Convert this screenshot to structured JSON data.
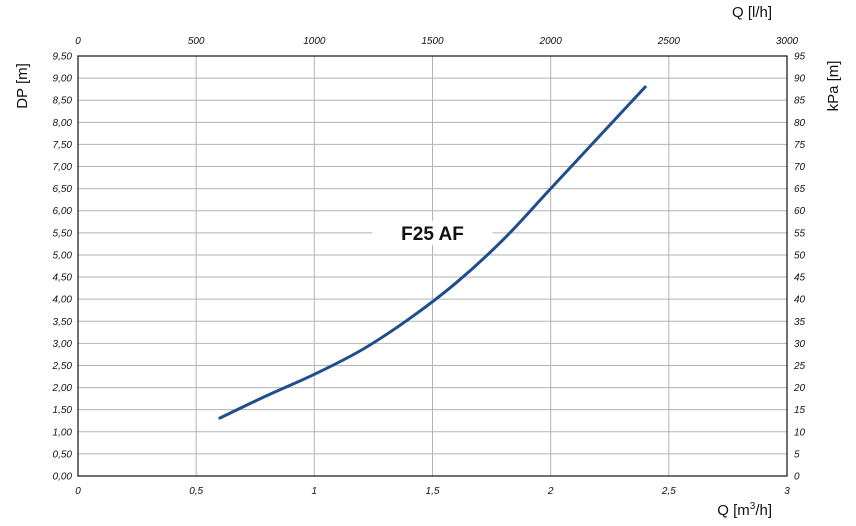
{
  "chart_data": {
    "type": "line",
    "title": "",
    "series": [
      {
        "name": "F25 AF",
        "color": "#1f4e8c",
        "x": [
          0.6,
          0.8,
          1.0,
          1.2,
          1.4,
          1.6,
          1.8,
          2.0,
          2.2,
          2.4
        ],
        "y": [
          1.31,
          1.82,
          2.3,
          2.85,
          3.55,
          4.37,
          5.35,
          6.5,
          7.65,
          8.8
        ]
      }
    ],
    "x_bottom": {
      "label": "Q [m",
      "label_sup": "3",
      "label_tail": "/h]",
      "range": [
        0,
        3
      ],
      "ticks": [
        0,
        0.5,
        1,
        1.5,
        2,
        2.5,
        3
      ],
      "tick_labels": [
        "0",
        "0,5",
        "1",
        "1,5",
        "2",
        "2,5",
        "3"
      ]
    },
    "x_top": {
      "label": "Q [l/h]",
      "range": [
        0,
        3000
      ],
      "ticks": [
        0,
        500,
        1000,
        1500,
        2000,
        2500,
        3000
      ],
      "tick_labels": [
        "0",
        "500",
        "1000",
        "1500",
        "2000",
        "2500",
        "3000"
      ]
    },
    "y_left": {
      "label": "DP [m]",
      "range": [
        0,
        9.5
      ],
      "ticks": [
        0,
        0.5,
        1,
        1.5,
        2,
        2.5,
        3,
        3.5,
        4,
        4.5,
        5,
        5.5,
        6,
        6.5,
        7,
        7.5,
        8,
        8.5,
        9,
        9.5
      ],
      "tick_labels": [
        "0,00",
        "0,50",
        "1,00",
        "1,50",
        "2,00",
        "2,50",
        "3,00",
        "3,50",
        "4,00",
        "4,50",
        "5,00",
        "5,50",
        "6,00",
        "6,50",
        "7,00",
        "7,50",
        "8,00",
        "8,50",
        "9,00",
        "9,50"
      ]
    },
    "y_right": {
      "label": "kPa [m]",
      "range": [
        0,
        95
      ],
      "ticks": [
        0,
        5,
        10,
        15,
        20,
        25,
        30,
        35,
        40,
        45,
        50,
        55,
        60,
        65,
        70,
        75,
        80,
        85,
        90,
        95
      ],
      "tick_labels": [
        "0",
        "5",
        "10",
        "15",
        "20",
        "25",
        "30",
        "35",
        "40",
        "45",
        "50",
        "55",
        "60",
        "65",
        "70",
        "75",
        "80",
        "85",
        "90",
        "95"
      ]
    },
    "annotation": {
      "text": "F25 AF",
      "x": 1.5,
      "y": 5.5
    },
    "grid": true
  }
}
